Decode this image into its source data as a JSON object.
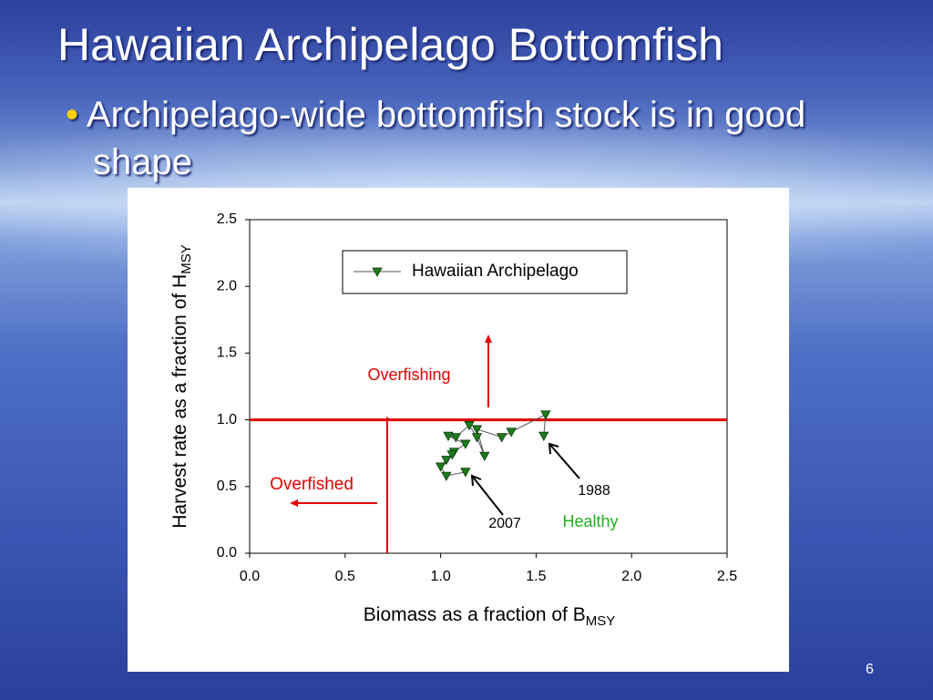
{
  "header": {
    "title": "Hawaiian Archipelago Bottomfish",
    "bullet": "Archipelago-wide bottomfish stock is in good shape"
  },
  "page_number": "6",
  "chart_data": {
    "type": "scatter",
    "x_label": {
      "text": "Biomass as a fraction of B",
      "sub": "MSY"
    },
    "y_label": {
      "text": "Harvest rate as a fraction of H",
      "sub": "MSY"
    },
    "x": [
      1.54,
      1.55,
      1.37,
      1.32,
      1.19,
      1.23,
      1.19,
      1.15,
      1.08,
      1.04,
      1.13,
      1.07,
      1.06,
      1.03,
      1.0,
      1.03,
      1.13
    ],
    "series": [
      {
        "name": "Hawaiian Archipelago",
        "color": "#1e7a1e",
        "values": [
          0.88,
          1.04,
          0.91,
          0.87,
          0.93,
          0.73,
          0.87,
          0.96,
          0.87,
          0.88,
          0.82,
          0.76,
          0.74,
          0.7,
          0.65,
          0.58,
          0.61
        ]
      }
    ],
    "xlim": [
      0,
      2.5
    ],
    "ylim": [
      0,
      2.5
    ],
    "xticks": [
      {
        "value": 0,
        "label": "0.0"
      },
      0.5,
      {
        "value": 1,
        "label": "1.0"
      },
      1.5,
      {
        "value": 2,
        "label": "2.0"
      },
      2.5
    ],
    "yticks": [
      {
        "value": 0,
        "label": "0.0"
      },
      0.5,
      {
        "value": 1,
        "label": "1.0"
      },
      1.5,
      {
        "value": 2,
        "label": "2.0"
      },
      2.5
    ],
    "reference_lines": {
      "color": "#e00000",
      "y": 1,
      "x": 0.72,
      "x_top": 1.02
    },
    "annotations": [
      {
        "text": "Overfishing",
        "color": "#e00000"
      },
      {
        "text": "Overfished",
        "color": "#e00000"
      },
      {
        "text": "1988",
        "color": "#000000"
      },
      {
        "text": "2007",
        "color": "#000000"
      },
      {
        "text": "Healthy",
        "color": "#22b022"
      }
    ],
    "legend": "top-right"
  }
}
